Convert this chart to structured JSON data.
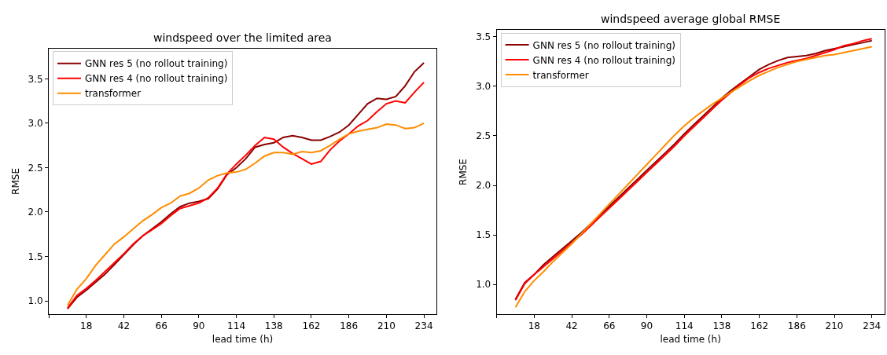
{
  "chart_data": [
    {
      "type": "line",
      "title": "windspeed over the limited area",
      "xlabel": "lead time (h)",
      "ylabel": "RMSE",
      "legend": "top left",
      "x": [
        6,
        12,
        18,
        24,
        30,
        36,
        42,
        48,
        54,
        60,
        66,
        72,
        78,
        84,
        90,
        96,
        102,
        108,
        114,
        120,
        126,
        132,
        138,
        144,
        150,
        156,
        162,
        168,
        174,
        180,
        186,
        192,
        198,
        204,
        210,
        216,
        222,
        228,
        234
      ],
      "xlim": [
        -6,
        242
      ],
      "xticks": [
        {
          "value": -6,
          "label": null
        },
        18,
        42,
        66,
        90,
        114,
        138,
        162,
        186,
        210,
        234
      ],
      "ylim": [
        0.85,
        3.84
      ],
      "yticks": [
        {
          "value": 1,
          "label": "1.0"
        },
        1.5,
        {
          "value": 2,
          "label": "2.0"
        },
        2.5,
        {
          "value": 3,
          "label": "3.0"
        },
        3.5
      ],
      "series": [
        {
          "name": "GNN res 5 (no rollout training)",
          "color": "#8b0000",
          "values": [
            0.91,
            1.04,
            1.12,
            1.21,
            1.3,
            1.41,
            1.52,
            1.63,
            1.73,
            1.81,
            1.89,
            1.98,
            2.06,
            2.1,
            2.12,
            2.15,
            2.26,
            2.42,
            2.5,
            2.6,
            2.73,
            2.76,
            2.78,
            2.84,
            2.86,
            2.84,
            2.81,
            2.81,
            2.85,
            2.9,
            2.98,
            3.1,
            3.22,
            3.28,
            3.27,
            3.3,
            3.42,
            3.58,
            3.68
          ]
        },
        {
          "name": "GNN res 4 (no rollout training)",
          "color": "#ff0000",
          "values": [
            0.92,
            1.06,
            1.14,
            1.23,
            1.33,
            1.43,
            1.53,
            1.64,
            1.73,
            1.8,
            1.87,
            1.96,
            2.04,
            2.07,
            2.1,
            2.16,
            2.27,
            2.43,
            2.54,
            2.64,
            2.75,
            2.84,
            2.82,
            2.73,
            2.66,
            2.6,
            2.54,
            2.57,
            2.7,
            2.8,
            2.88,
            2.97,
            3.03,
            3.13,
            3.22,
            3.25,
            3.23,
            3.35,
            3.46
          ]
        },
        {
          "name": "transformer",
          "color": "#ff8c00",
          "values": [
            0.95,
            1.13,
            1.25,
            1.4,
            1.52,
            1.64,
            1.72,
            1.81,
            1.9,
            1.97,
            2.05,
            2.1,
            2.18,
            2.21,
            2.27,
            2.36,
            2.41,
            2.44,
            2.45,
            2.48,
            2.55,
            2.63,
            2.67,
            2.67,
            2.65,
            2.68,
            2.67,
            2.69,
            2.75,
            2.82,
            2.88,
            2.91,
            2.93,
            2.95,
            2.99,
            2.98,
            2.94,
            2.95,
            3.0
          ]
        }
      ]
    },
    {
      "type": "line",
      "title": "windspeed average global RMSE",
      "xlabel": "lead time (h)",
      "ylabel": "RMSE",
      "legend": "top left",
      "x": [
        6,
        12,
        18,
        24,
        30,
        36,
        42,
        48,
        54,
        60,
        66,
        72,
        78,
        84,
        90,
        96,
        102,
        108,
        114,
        120,
        126,
        132,
        138,
        144,
        150,
        156,
        162,
        168,
        174,
        180,
        186,
        192,
        198,
        204,
        210,
        216,
        222,
        228,
        234
      ],
      "xlim": [
        -6,
        242
      ],
      "xticks": [
        {
          "value": -6,
          "label": null
        },
        18,
        42,
        66,
        90,
        114,
        138,
        162,
        186,
        210,
        234
      ],
      "ylim": [
        0.7,
        3.57
      ],
      "yticks": [
        {
          "value": 1,
          "label": "1.0"
        },
        1.5,
        {
          "value": 2,
          "label": "2.0"
        },
        2.5,
        {
          "value": 3,
          "label": "3.0"
        },
        3.5
      ],
      "series": [
        {
          "name": "GNN res 5 (no rollout training)",
          "color": "#8b0000",
          "values": [
            0.85,
            1.02,
            1.1,
            1.2,
            1.28,
            1.36,
            1.44,
            1.52,
            1.61,
            1.7,
            1.79,
            1.88,
            1.97,
            2.06,
            2.15,
            2.24,
            2.33,
            2.42,
            2.52,
            2.61,
            2.7,
            2.79,
            2.88,
            2.96,
            3.03,
            3.1,
            3.17,
            3.22,
            3.26,
            3.29,
            3.3,
            3.31,
            3.33,
            3.36,
            3.38,
            3.4,
            3.42,
            3.44,
            3.46
          ]
        },
        {
          "name": "GNN res 4 (no rollout training)",
          "color": "#ff0000",
          "values": [
            0.84,
            1.01,
            1.1,
            1.18,
            1.26,
            1.34,
            1.42,
            1.5,
            1.59,
            1.68,
            1.77,
            1.86,
            1.95,
            2.04,
            2.13,
            2.22,
            2.31,
            2.4,
            2.5,
            2.59,
            2.68,
            2.77,
            2.86,
            2.94,
            3.02,
            3.09,
            3.14,
            3.18,
            3.21,
            3.24,
            3.26,
            3.28,
            3.31,
            3.34,
            3.37,
            3.41,
            3.43,
            3.46,
            3.48
          ]
        },
        {
          "name": "transformer",
          "color": "#ff8c00",
          "values": [
            0.77,
            0.93,
            1.04,
            1.13,
            1.23,
            1.32,
            1.41,
            1.51,
            1.61,
            1.71,
            1.81,
            1.91,
            2.01,
            2.11,
            2.21,
            2.31,
            2.41,
            2.51,
            2.6,
            2.68,
            2.75,
            2.82,
            2.88,
            2.94,
            3.0,
            3.06,
            3.11,
            3.15,
            3.19,
            3.22,
            3.25,
            3.27,
            3.29,
            3.31,
            3.32,
            3.34,
            3.36,
            3.38,
            3.4
          ]
        }
      ]
    }
  ]
}
